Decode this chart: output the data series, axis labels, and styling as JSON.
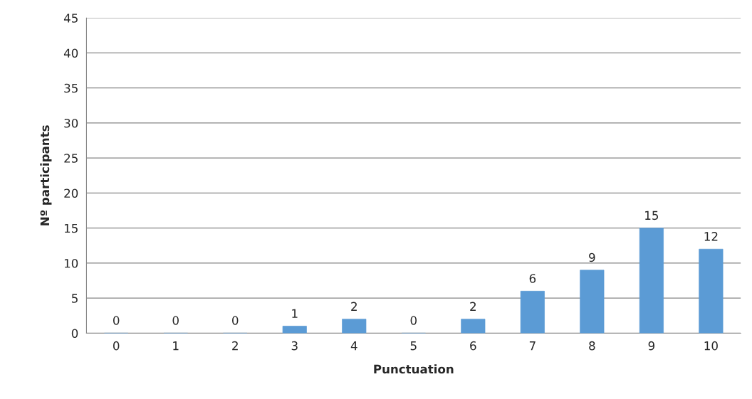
{
  "chart_data": {
    "type": "bar",
    "xlabel": "Punctuation",
    "ylabel": "Nº participants",
    "categories": [
      "0",
      "1",
      "2",
      "3",
      "4",
      "5",
      "6",
      "7",
      "8",
      "9",
      "10"
    ],
    "values": [
      0,
      0,
      0,
      1,
      2,
      0,
      2,
      6,
      9,
      15,
      12
    ],
    "color": "#5b9bd5",
    "ylim": [
      0,
      45
    ],
    "yticks": [
      0,
      5,
      10,
      15,
      20,
      25,
      30,
      35,
      40,
      45
    ],
    "grid": "y",
    "data_labels": true,
    "legend": false
  }
}
